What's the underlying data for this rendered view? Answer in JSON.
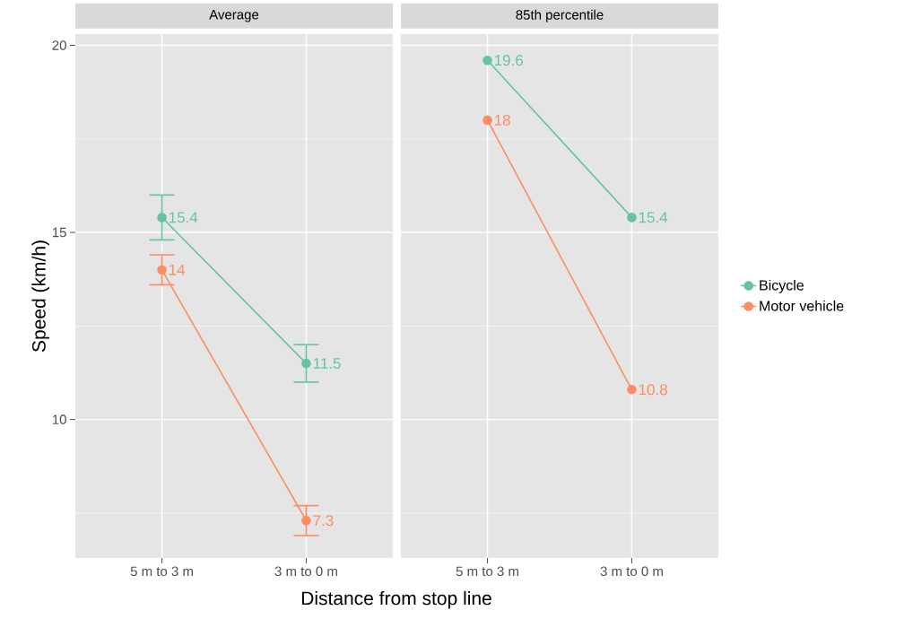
{
  "chart_data": [
    {
      "type": "line",
      "title": "Average",
      "xlabel": "Distance from stop line",
      "ylabel": "Speed (km/h)",
      "categories": [
        "5 m to 3 m",
        "3 m to 0 m"
      ],
      "ylim": [
        6.3,
        20.3
      ],
      "yticks": [
        {
          "value": 7.5,
          "label": null
        },
        10,
        {
          "value": 12.5,
          "label": null
        },
        15,
        {
          "value": 17.5,
          "label": null
        },
        20
      ],
      "grid": true,
      "marker": "circle",
      "data_labels": true,
      "series": [
        {
          "color": "#66c2a5",
          "values": [
            15.4,
            11.5
          ],
          "errors": [
            0.6,
            0.5
          ]
        },
        {
          "color": "#fc8d62",
          "values": [
            14,
            7.3
          ],
          "errors": [
            0.4,
            0.4
          ]
        }
      ]
    },
    {
      "type": "line",
      "title": "85th percentile",
      "categories": [
        "5 m to 3 m",
        "3 m to 0 m"
      ],
      "ylim": [
        6.3,
        20.3
      ],
      "yticks": [
        {
          "value": 7.5,
          "label": null
        },
        10,
        {
          "value": 12.5,
          "label": null
        },
        15,
        {
          "value": 17.5,
          "label": null
        },
        20
      ],
      "tick_labels": "x",
      "grid": true,
      "marker": "circle",
      "data_labels": true,
      "legend": "right",
      "series": [
        {
          "name": "Bicycle",
          "color": "#66c2a5",
          "values": [
            19.6,
            15.4
          ]
        },
        {
          "name": "Motor vehicle",
          "color": "#fc8d62",
          "values": [
            18,
            10.8
          ]
        }
      ]
    }
  ]
}
